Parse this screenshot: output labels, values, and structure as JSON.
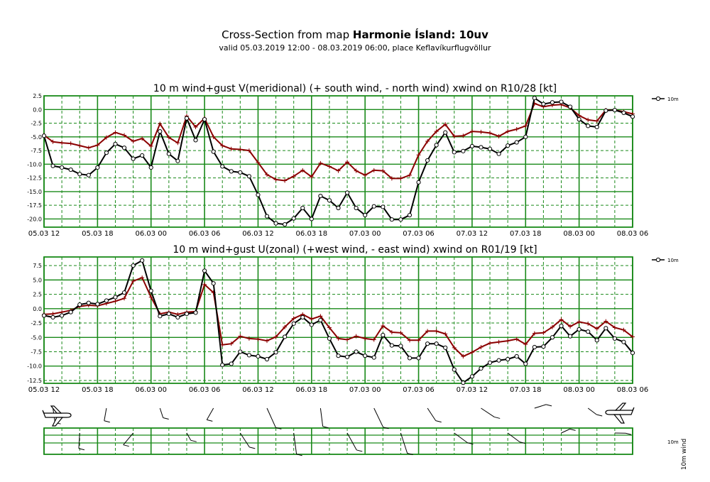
{
  "header": {
    "title_prefix": "Cross-Section from map ",
    "title_bold": "Harmonie Ísland: 10uv",
    "subtitle": "valid 05.03.2019 12:00 - 08.03.2019 06:00, place Keflavíkurflugvöllur"
  },
  "colors": {
    "grid": "#1a8a1a",
    "wind": "#000000",
    "gust": "#8b0000"
  },
  "chart_data": [
    {
      "type": "line",
      "title": "10 m wind+gust V(meridional) (+ south wind, - north wind) xwind on R10/28 [kt]",
      "x_tick_labels": [
        "05.03 12",
        "05.03 18",
        "06.03 00",
        "06.03 06",
        "06.03 12",
        "06.03 18",
        "07.03 00",
        "07.03 06",
        "07.03 12",
        "07.03 18",
        "08.03 00",
        "08.03 06"
      ],
      "y_ticks": [
        2.5,
        0.0,
        -2.5,
        -5.0,
        -7.5,
        -10.0,
        -12.5,
        -15.0,
        -17.5,
        -20.0
      ],
      "y_tick_labels": [
        "2.5",
        "0.0",
        "-2.5",
        "-5.0",
        "-7.5",
        "-10.0",
        "-12.5",
        "-15.0",
        "-17.5",
        "-20.0"
      ],
      "ylim": [
        -21.5,
        2.5
      ],
      "x_unit": "hours since 05.03 12",
      "legend": "10m",
      "legend_position": "top-right",
      "grid": true,
      "series": [
        {
          "name": "10m",
          "role": "wind",
          "x": [
            0,
            1,
            2,
            3,
            4,
            5,
            6,
            7,
            8,
            9,
            10,
            11,
            12,
            13,
            14,
            15,
            16,
            17,
            18,
            19,
            20,
            21,
            22,
            23,
            24,
            25,
            26,
            27,
            28,
            29,
            30,
            31,
            32,
            33,
            34,
            35,
            36,
            37,
            38,
            39,
            40,
            41,
            42,
            43,
            44,
            45,
            46,
            47,
            48,
            49,
            50,
            51,
            52,
            53,
            54,
            55,
            56,
            57,
            58,
            59,
            60,
            61,
            62,
            63,
            64,
            65,
            66
          ],
          "y": [
            -4.8,
            -10.3,
            -10.6,
            -11.0,
            -11.8,
            -12.0,
            -10.6,
            -7.9,
            -6.3,
            -7.0,
            -9.0,
            -8.4,
            -10.6,
            -4.0,
            -8.1,
            -9.4,
            -1.6,
            -5.6,
            -1.8,
            -7.7,
            -10.4,
            -11.3,
            -11.5,
            -12.2,
            -15.6,
            -19.5,
            -20.8,
            -21.0,
            -19.9,
            -18.0,
            -20.0,
            -15.8,
            -16.6,
            -18.0,
            -15.2,
            -18.0,
            -19.3,
            -17.7,
            -17.8,
            -20.1,
            -20.1,
            -19.3,
            -13.3,
            -9.3,
            -6.5,
            -4.2,
            -7.8,
            -7.6,
            -6.7,
            -6.9,
            -7.2,
            -8.1,
            -6.6,
            -6.0,
            -5.0,
            2.1,
            1.0,
            1.3,
            1.4,
            0.5,
            -1.8,
            -3.0,
            -3.2,
            -0.2,
            -0.1,
            -0.6,
            -1.3
          ]
        },
        {
          "name": "",
          "role": "gust",
          "x": [
            0,
            1,
            2,
            3,
            4,
            5,
            6,
            7,
            8,
            9,
            10,
            11,
            12,
            13,
            14,
            15,
            16,
            17,
            18,
            19,
            20,
            21,
            22,
            23,
            24,
            25,
            26,
            27,
            28,
            29,
            30,
            31,
            32,
            33,
            34,
            35,
            36,
            37,
            38,
            39,
            40,
            41,
            42,
            43,
            44,
            45,
            46,
            47,
            48,
            49,
            50,
            51,
            52,
            53,
            54,
            55,
            56,
            57,
            58,
            59,
            60,
            61,
            62,
            63,
            64,
            65,
            66
          ],
          "y": [
            -4.7,
            -5.9,
            -6.1,
            -6.2,
            -6.6,
            -7.0,
            -6.5,
            -5.1,
            -4.2,
            -4.7,
            -5.8,
            -5.3,
            -6.7,
            -2.6,
            -5.1,
            -6.1,
            -1.2,
            -3.2,
            -1.6,
            -5.0,
            -6.6,
            -7.2,
            -7.3,
            -7.5,
            -9.7,
            -11.9,
            -12.8,
            -13.0,
            -12.2,
            -11.1,
            -12.3,
            -9.8,
            -10.4,
            -11.2,
            -9.6,
            -11.2,
            -12.0,
            -11.1,
            -11.2,
            -12.6,
            -12.6,
            -12.0,
            -8.3,
            -5.8,
            -4.0,
            -2.7,
            -4.9,
            -4.8,
            -4.0,
            -4.1,
            -4.3,
            -4.9,
            -4.0,
            -3.6,
            -3.0,
            1.1,
            0.5,
            0.8,
            0.9,
            0.3,
            -1.1,
            -1.9,
            -2.1,
            -0.1,
            -0.1,
            -0.4,
            -0.8
          ]
        }
      ]
    },
    {
      "type": "line",
      "title": "10 m wind+gust U(zonal) (+west wind, - east wind) xwind on R01/19 [kt]",
      "x_tick_labels": [
        "05.03 12",
        "05.03 18",
        "06.03 00",
        "06.03 06",
        "06.03 12",
        "06.03 18",
        "07.03 00",
        "07.03 06",
        "07.03 12",
        "07.03 18",
        "08.03 00",
        "08.03 06"
      ],
      "y_ticks": [
        7.5,
        5.0,
        2.5,
        0.0,
        -2.5,
        -5.0,
        -7.5,
        -10.0,
        -12.5
      ],
      "y_tick_labels": [
        "7.5",
        "5.0",
        "2.5",
        "0.0",
        "-2.5",
        "-5.0",
        "-7.5",
        "-10.0",
        "-12.5"
      ],
      "ylim": [
        -13.0,
        9.0
      ],
      "x_unit": "hours since 05.03 12",
      "legend": "10m",
      "legend_position": "top-right",
      "grid": true,
      "series": [
        {
          "name": "10m",
          "role": "wind",
          "x": [
            0,
            1,
            2,
            3,
            4,
            5,
            6,
            7,
            8,
            9,
            10,
            11,
            12,
            13,
            14,
            15,
            16,
            17,
            18,
            19,
            20,
            21,
            22,
            23,
            24,
            25,
            26,
            27,
            28,
            29,
            30,
            31,
            32,
            33,
            34,
            35,
            36,
            37,
            38,
            39,
            40,
            41,
            42,
            43,
            44,
            45,
            46,
            47,
            48,
            49,
            50,
            51,
            52,
            53,
            54,
            55,
            56,
            57,
            58,
            59,
            60,
            61,
            62,
            63,
            64,
            65,
            66
          ],
          "y": [
            -1.2,
            -1.5,
            -1.2,
            -0.6,
            0.7,
            1.0,
            0.8,
            1.4,
            2.0,
            2.8,
            7.5,
            8.4,
            3.1,
            -1.3,
            -0.9,
            -1.5,
            -0.9,
            -0.7,
            6.6,
            4.4,
            -9.8,
            -9.6,
            -7.5,
            -8.1,
            -8.3,
            -8.8,
            -7.6,
            -4.9,
            -2.6,
            -1.5,
            -2.8,
            -2.0,
            -5.2,
            -8.2,
            -8.4,
            -7.5,
            -8.2,
            -8.5,
            -4.6,
            -6.4,
            -6.5,
            -8.6,
            -8.6,
            -6.1,
            -6.1,
            -6.8,
            -10.6,
            -12.9,
            -11.8,
            -10.4,
            -9.4,
            -9.0,
            -8.8,
            -8.3,
            -9.6,
            -6.7,
            -6.6,
            -5.0,
            -3.0,
            -4.8,
            -3.6,
            -4.0,
            -5.5,
            -3.4,
            -5.2,
            -5.8,
            -7.7
          ]
        },
        {
          "name": "",
          "role": "gust",
          "x": [
            0,
            1,
            2,
            3,
            4,
            5,
            6,
            7,
            8,
            9,
            10,
            11,
            12,
            13,
            14,
            15,
            16,
            17,
            18,
            19,
            20,
            21,
            22,
            23,
            24,
            25,
            26,
            27,
            28,
            29,
            30,
            31,
            32,
            33,
            34,
            35,
            36,
            37,
            38,
            39,
            40,
            41,
            42,
            43,
            44,
            45,
            46,
            47,
            48,
            49,
            50,
            51,
            52,
            53,
            54,
            55,
            56,
            57,
            58,
            59,
            60,
            61,
            62,
            63,
            64,
            65,
            66
          ],
          "y": [
            -1.0,
            -0.9,
            -0.6,
            -0.3,
            0.4,
            0.6,
            0.5,
            0.9,
            1.3,
            1.8,
            4.8,
            5.4,
            2.0,
            -0.9,
            -0.6,
            -1.0,
            -0.6,
            -0.5,
            4.2,
            2.8,
            -6.3,
            -6.1,
            -4.8,
            -5.2,
            -5.3,
            -5.6,
            -4.9,
            -3.2,
            -1.7,
            -1.0,
            -1.8,
            -1.3,
            -3.3,
            -5.2,
            -5.4,
            -4.8,
            -5.2,
            -5.4,
            -3.0,
            -4.1,
            -4.2,
            -5.5,
            -5.5,
            -3.9,
            -3.9,
            -4.4,
            -6.8,
            -8.3,
            -7.6,
            -6.7,
            -6.0,
            -5.8,
            -5.6,
            -5.3,
            -6.2,
            -4.3,
            -4.2,
            -3.2,
            -1.9,
            -3.1,
            -2.3,
            -2.6,
            -3.5,
            -2.2,
            -3.3,
            -3.7,
            -4.9
          ]
        }
      ]
    }
  ],
  "barb_panel": {
    "legend": "10m",
    "axis_label": "10m wind",
    "left_icon": "airplane-icon",
    "right_icon": "airplane-icon"
  }
}
